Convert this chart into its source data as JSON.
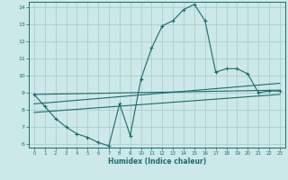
{
  "xlabel": "Humidex (Indice chaleur)",
  "background_color": "#cde8e8",
  "grid_color": "#aacece",
  "line_color": "#1a6b6b",
  "xlim": [
    -0.5,
    23.5
  ],
  "ylim": [
    5.8,
    14.3
  ],
  "xticks": [
    0,
    1,
    2,
    3,
    4,
    5,
    6,
    7,
    8,
    9,
    10,
    11,
    12,
    13,
    14,
    15,
    16,
    17,
    18,
    19,
    20,
    21,
    22,
    23
  ],
  "yticks": [
    6,
    7,
    8,
    9,
    10,
    11,
    12,
    13,
    14
  ],
  "line1_x": [
    0,
    1,
    2,
    3,
    4,
    5,
    6,
    7,
    8,
    9,
    10,
    11,
    12,
    13,
    14,
    15,
    16,
    17,
    18,
    19,
    20,
    21,
    22,
    23
  ],
  "line1_y": [
    8.9,
    8.2,
    7.5,
    7.0,
    6.6,
    6.4,
    6.1,
    5.9,
    8.35,
    6.5,
    9.8,
    11.6,
    12.9,
    13.2,
    13.85,
    14.15,
    13.2,
    10.2,
    10.4,
    10.4,
    10.1,
    9.0,
    9.1,
    9.1
  ],
  "line2_x": [
    0,
    23
  ],
  "line2_y": [
    8.9,
    9.15
  ],
  "line3_x": [
    0,
    23
  ],
  "line3_y": [
    8.35,
    9.55
  ],
  "line4_x": [
    0,
    23
  ],
  "line4_y": [
    7.85,
    8.9
  ]
}
